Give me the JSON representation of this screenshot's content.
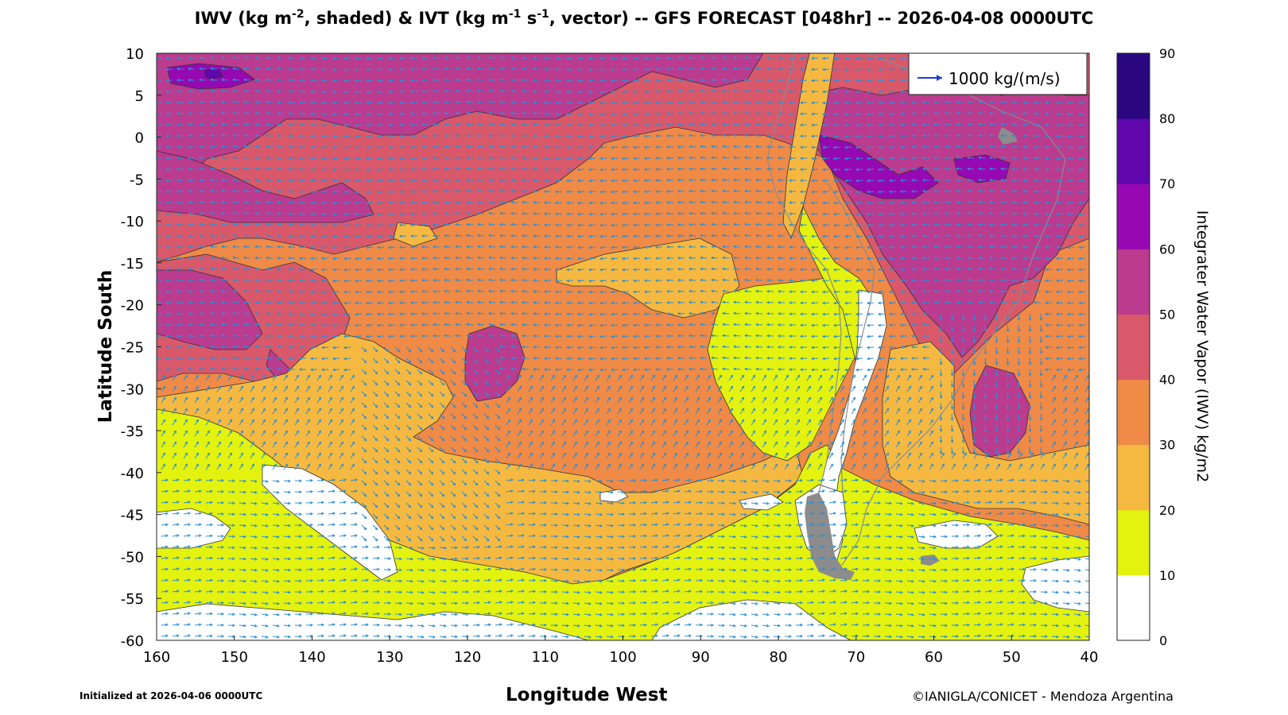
{
  "title": {
    "p1": "IWV (kg m",
    "s1": "-2",
    "p2": ", shaded) & IVT (kg m",
    "s2": "-1",
    "p3": " s",
    "s3": "-1",
    "p4": ", vector) -- GFS FORECAST [048hr] -- 2026-04-08 0000UTC"
  },
  "axes": {
    "xlabel": "Longitude West",
    "ylabel": "Latitude South",
    "x_ticks": [
      "160",
      "150",
      "140",
      "130",
      "120",
      "110",
      "100",
      "90",
      "80",
      "70",
      "60",
      "50",
      "40"
    ],
    "y_ticks": [
      "10",
      "5",
      "0",
      "-5",
      "-10",
      "-15",
      "-20",
      "-25",
      "-30",
      "-35",
      "-40",
      "-45",
      "-50",
      "-55",
      "-60"
    ],
    "lon_range": [
      160,
      40
    ],
    "lat_range": [
      -60,
      10
    ]
  },
  "legend": {
    "label": "1000 kg/(m/s)",
    "position": "top-right",
    "arrow_color": "#1f3fd6"
  },
  "colorbar": {
    "label": "Integrater Water Vapor (IWV) kg/m2",
    "ticks": [
      "0",
      "10",
      "20",
      "30",
      "40",
      "50",
      "60",
      "70",
      "80",
      "90"
    ],
    "levels": [
      {
        "min": 0,
        "max": 10,
        "color": "#ffffff"
      },
      {
        "min": 10,
        "max": 20,
        "color": "#e3f20f"
      },
      {
        "min": 20,
        "max": 30,
        "color": "#f5b941"
      },
      {
        "min": 30,
        "max": 40,
        "color": "#ef8a47"
      },
      {
        "min": 40,
        "max": 50,
        "color": "#d9596b"
      },
      {
        "min": 50,
        "max": 60,
        "color": "#bb3b8e"
      },
      {
        "min": 60,
        "max": 70,
        "color": "#9609b2"
      },
      {
        "min": 70,
        "max": 80,
        "color": "#6007ae"
      },
      {
        "min": 80,
        "max": 90,
        "color": "#2b077f"
      }
    ]
  },
  "vector_color": "#2a8fd6",
  "land_color": "#8c8c8c",
  "footer": {
    "init": "Initialized at 2026-04-06 0000UTC",
    "credit": "©IANIGLA/CONICET - Mendoza Argentina"
  }
}
